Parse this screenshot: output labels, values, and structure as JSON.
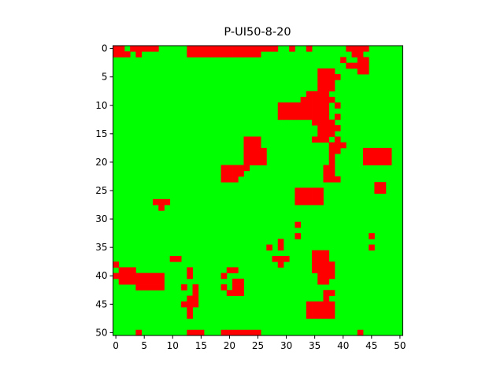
{
  "chart_data": {
    "type": "heatmap",
    "title": "P-UI50-8-20",
    "xlabel": "",
    "ylabel": "",
    "rows": 51,
    "cols": 51,
    "xlim": [
      0,
      50
    ],
    "ylim": [
      50,
      0
    ],
    "x_ticks": [
      0,
      5,
      10,
      15,
      20,
      25,
      30,
      35,
      40,
      45,
      50
    ],
    "y_ticks": [
      0,
      5,
      10,
      15,
      20,
      25,
      30,
      35,
      40,
      45,
      50
    ],
    "grid": false,
    "colors": {
      "background": "#00ff00",
      "marked": "#ff0000",
      "axis": "#000000"
    },
    "red_cells": [
      [
        0,
        0
      ],
      [
        0,
        1
      ],
      [
        0,
        3
      ],
      [
        0,
        4
      ],
      [
        0,
        5
      ],
      [
        0,
        6
      ],
      [
        0,
        7
      ],
      [
        0,
        13
      ],
      [
        0,
        14
      ],
      [
        0,
        15
      ],
      [
        0,
        16
      ],
      [
        0,
        17
      ],
      [
        0,
        18
      ],
      [
        0,
        19
      ],
      [
        0,
        20
      ],
      [
        0,
        21
      ],
      [
        0,
        22
      ],
      [
        0,
        23
      ],
      [
        0,
        24
      ],
      [
        0,
        25
      ],
      [
        0,
        26
      ],
      [
        0,
        27
      ],
      [
        0,
        28
      ],
      [
        0,
        31
      ],
      [
        0,
        34
      ],
      [
        0,
        41
      ],
      [
        0,
        42
      ],
      [
        0,
        43
      ],
      [
        0,
        44
      ],
      [
        1,
        0
      ],
      [
        1,
        1
      ],
      [
        1,
        2
      ],
      [
        1,
        4
      ],
      [
        1,
        13
      ],
      [
        1,
        14
      ],
      [
        1,
        15
      ],
      [
        1,
        16
      ],
      [
        1,
        17
      ],
      [
        1,
        18
      ],
      [
        1,
        19
      ],
      [
        1,
        20
      ],
      [
        1,
        21
      ],
      [
        1,
        22
      ],
      [
        1,
        23
      ],
      [
        1,
        24
      ],
      [
        1,
        25
      ],
      [
        1,
        42
      ],
      [
        1,
        43
      ],
      [
        2,
        40
      ],
      [
        2,
        43
      ],
      [
        2,
        44
      ],
      [
        3,
        41
      ],
      [
        3,
        42
      ],
      [
        3,
        43
      ],
      [
        3,
        44
      ],
      [
        4,
        43
      ],
      [
        4,
        44
      ],
      [
        4,
        36
      ],
      [
        4,
        37
      ],
      [
        4,
        38
      ],
      [
        5,
        36
      ],
      [
        5,
        37
      ],
      [
        5,
        38
      ],
      [
        5,
        39
      ],
      [
        6,
        36
      ],
      [
        6,
        37
      ],
      [
        6,
        38
      ],
      [
        7,
        36
      ],
      [
        7,
        37
      ],
      [
        7,
        38
      ],
      [
        8,
        34
      ],
      [
        8,
        35
      ],
      [
        8,
        36
      ],
      [
        8,
        37
      ],
      [
        9,
        33
      ],
      [
        9,
        34
      ],
      [
        9,
        35
      ],
      [
        9,
        36
      ],
      [
        9,
        37
      ],
      [
        9,
        38
      ],
      [
        10,
        29
      ],
      [
        10,
        30
      ],
      [
        10,
        31
      ],
      [
        10,
        32
      ],
      [
        10,
        33
      ],
      [
        10,
        34
      ],
      [
        10,
        35
      ],
      [
        10,
        36
      ],
      [
        10,
        37
      ],
      [
        10,
        39
      ],
      [
        11,
        29
      ],
      [
        11,
        30
      ],
      [
        11,
        31
      ],
      [
        11,
        32
      ],
      [
        11,
        33
      ],
      [
        11,
        34
      ],
      [
        11,
        35
      ],
      [
        11,
        36
      ],
      [
        11,
        37
      ],
      [
        12,
        29
      ],
      [
        12,
        30
      ],
      [
        12,
        31
      ],
      [
        12,
        32
      ],
      [
        12,
        33
      ],
      [
        12,
        34
      ],
      [
        12,
        35
      ],
      [
        12,
        36
      ],
      [
        12,
        37
      ],
      [
        12,
        39
      ],
      [
        13,
        35
      ],
      [
        13,
        36
      ],
      [
        13,
        37
      ],
      [
        13,
        38
      ],
      [
        14,
        36
      ],
      [
        14,
        37
      ],
      [
        14,
        38
      ],
      [
        14,
        39
      ],
      [
        15,
        36
      ],
      [
        15,
        37
      ],
      [
        15,
        38
      ],
      [
        16,
        35
      ],
      [
        16,
        36
      ],
      [
        16,
        37
      ],
      [
        16,
        39
      ],
      [
        16,
        23
      ],
      [
        16,
        24
      ],
      [
        16,
        25
      ],
      [
        17,
        23
      ],
      [
        17,
        24
      ],
      [
        17,
        25
      ],
      [
        17,
        38
      ],
      [
        17,
        39
      ],
      [
        17,
        40
      ],
      [
        18,
        23
      ],
      [
        18,
        24
      ],
      [
        18,
        25
      ],
      [
        18,
        26
      ],
      [
        18,
        38
      ],
      [
        18,
        39
      ],
      [
        18,
        44
      ],
      [
        18,
        45
      ],
      [
        18,
        46
      ],
      [
        18,
        47
      ],
      [
        18,
        48
      ],
      [
        19,
        23
      ],
      [
        19,
        24
      ],
      [
        19,
        25
      ],
      [
        19,
        26
      ],
      [
        19,
        38
      ],
      [
        19,
        44
      ],
      [
        19,
        45
      ],
      [
        19,
        46
      ],
      [
        19,
        47
      ],
      [
        19,
        48
      ],
      [
        20,
        23
      ],
      [
        20,
        24
      ],
      [
        20,
        25
      ],
      [
        20,
        26
      ],
      [
        20,
        38
      ],
      [
        20,
        44
      ],
      [
        20,
        45
      ],
      [
        20,
        46
      ],
      [
        20,
        47
      ],
      [
        20,
        48
      ],
      [
        21,
        19
      ],
      [
        21,
        20
      ],
      [
        21,
        21
      ],
      [
        21,
        22
      ],
      [
        21,
        23
      ],
      [
        21,
        37
      ],
      [
        21,
        38
      ],
      [
        22,
        19
      ],
      [
        22,
        20
      ],
      [
        22,
        21
      ],
      [
        22,
        22
      ],
      [
        22,
        37
      ],
      [
        22,
        38
      ],
      [
        23,
        19
      ],
      [
        23,
        20
      ],
      [
        23,
        21
      ],
      [
        23,
        37
      ],
      [
        23,
        38
      ],
      [
        23,
        39
      ],
      [
        24,
        46
      ],
      [
        24,
        47
      ],
      [
        25,
        46
      ],
      [
        25,
        47
      ],
      [
        25,
        32
      ],
      [
        25,
        33
      ],
      [
        25,
        34
      ],
      [
        25,
        35
      ],
      [
        25,
        36
      ],
      [
        26,
        32
      ],
      [
        26,
        33
      ],
      [
        26,
        34
      ],
      [
        26,
        35
      ],
      [
        26,
        36
      ],
      [
        27,
        32
      ],
      [
        27,
        33
      ],
      [
        27,
        34
      ],
      [
        27,
        35
      ],
      [
        27,
        36
      ],
      [
        27,
        7
      ],
      [
        27,
        8
      ],
      [
        27,
        9
      ],
      [
        28,
        8
      ],
      [
        31,
        32
      ],
      [
        33,
        32
      ],
      [
        33,
        45
      ],
      [
        35,
        45
      ],
      [
        35,
        27
      ],
      [
        35,
        29
      ],
      [
        34,
        29
      ],
      [
        36,
        35
      ],
      [
        36,
        36
      ],
      [
        36,
        37
      ],
      [
        37,
        10
      ],
      [
        37,
        11
      ],
      [
        37,
        28
      ],
      [
        37,
        29
      ],
      [
        37,
        30
      ],
      [
        37,
        35
      ],
      [
        37,
        36
      ],
      [
        37,
        37
      ],
      [
        38,
        0
      ],
      [
        38,
        29
      ],
      [
        38,
        35
      ],
      [
        38,
        36
      ],
      [
        38,
        37
      ],
      [
        38,
        38
      ],
      [
        39,
        1
      ],
      [
        39,
        2
      ],
      [
        39,
        3
      ],
      [
        39,
        13
      ],
      [
        39,
        20
      ],
      [
        39,
        21
      ],
      [
        39,
        35
      ],
      [
        39,
        36
      ],
      [
        39,
        37
      ],
      [
        39,
        38
      ],
      [
        40,
        0
      ],
      [
        40,
        1
      ],
      [
        40,
        2
      ],
      [
        40,
        3
      ],
      [
        40,
        4
      ],
      [
        40,
        5
      ],
      [
        40,
        6
      ],
      [
        40,
        7
      ],
      [
        40,
        8
      ],
      [
        40,
        13
      ],
      [
        40,
        19
      ],
      [
        40,
        36
      ],
      [
        40,
        37
      ],
      [
        40,
        38
      ],
      [
        41,
        1
      ],
      [
        41,
        2
      ],
      [
        41,
        3
      ],
      [
        41,
        4
      ],
      [
        41,
        5
      ],
      [
        41,
        6
      ],
      [
        41,
        7
      ],
      [
        41,
        8
      ],
      [
        41,
        21
      ],
      [
        41,
        22
      ],
      [
        41,
        36
      ],
      [
        41,
        37
      ],
      [
        42,
        4
      ],
      [
        42,
        5
      ],
      [
        42,
        6
      ],
      [
        42,
        7
      ],
      [
        42,
        8
      ],
      [
        42,
        12
      ],
      [
        42,
        14
      ],
      [
        42,
        19
      ],
      [
        42,
        21
      ],
      [
        42,
        22
      ],
      [
        43,
        14
      ],
      [
        43,
        20
      ],
      [
        43,
        21
      ],
      [
        43,
        22
      ],
      [
        43,
        37
      ],
      [
        43,
        38
      ],
      [
        44,
        13
      ],
      [
        44,
        14
      ],
      [
        44,
        37
      ],
      [
        45,
        12
      ],
      [
        45,
        13
      ],
      [
        45,
        14
      ],
      [
        45,
        34
      ],
      [
        45,
        35
      ],
      [
        45,
        36
      ],
      [
        45,
        37
      ],
      [
        45,
        38
      ],
      [
        46,
        13
      ],
      [
        46,
        34
      ],
      [
        46,
        35
      ],
      [
        46,
        36
      ],
      [
        46,
        37
      ],
      [
        46,
        38
      ],
      [
        47,
        13
      ],
      [
        47,
        34
      ],
      [
        47,
        35
      ],
      [
        47,
        36
      ],
      [
        47,
        37
      ],
      [
        47,
        38
      ],
      [
        50,
        4
      ],
      [
        50,
        13
      ],
      [
        50,
        14
      ],
      [
        50,
        15
      ],
      [
        50,
        19
      ],
      [
        50,
        20
      ],
      [
        50,
        21
      ],
      [
        50,
        22
      ],
      [
        50,
        23
      ],
      [
        50,
        24
      ],
      [
        50,
        25
      ],
      [
        50,
        43
      ]
    ]
  }
}
